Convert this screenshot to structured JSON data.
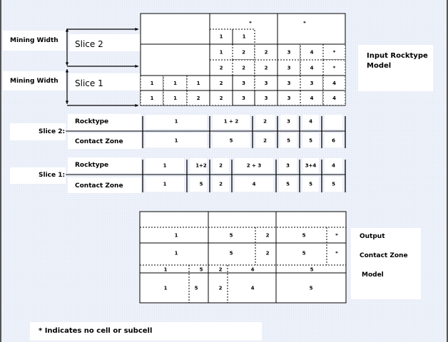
{
  "labels": {
    "mining_width": "Mining Width",
    "slice2": "Slice 2",
    "slice1": "Slice 1",
    "input_model": [
      "Input Rocktype",
      "Model"
    ],
    "slice2_colon": "Slice 2:",
    "slice1_colon": "Slice 1:",
    "rocktype": "Rocktype",
    "contact_zone": "Contact Zone",
    "output_model": [
      "Output",
      "Contact Zone",
      "Model"
    ],
    "note": "* Indicates no cell or subcell"
  },
  "input_grid": {
    "top_stars": [
      "*",
      "*"
    ],
    "row_a": [
      "1",
      "1"
    ],
    "row_b": [
      "1",
      "2",
      "2",
      "3",
      "4",
      "*"
    ],
    "row_c": [
      "2",
      "2",
      "2",
      "3",
      "4",
      "*"
    ],
    "row_d": [
      "1",
      "1",
      "1",
      "2",
      "3",
      "3",
      "3",
      "3",
      "4"
    ],
    "row_e": [
      "1",
      "1",
      "2",
      "2",
      "3",
      "3",
      "3",
      "4",
      "4"
    ]
  },
  "slice2_table": {
    "rocktype": [
      "1",
      "1 + 2",
      "2",
      "3",
      "4",
      ""
    ],
    "contact_zone": [
      "1",
      "5",
      "2",
      "5",
      "5",
      "6"
    ]
  },
  "slice1_table": {
    "rocktype": [
      "1",
      "1+2",
      "2",
      "2 + 3",
      "3",
      "3+4",
      "4"
    ],
    "contact_zone": [
      "1",
      "5",
      "2",
      "4",
      "5",
      "5",
      "5"
    ]
  },
  "output_grid": {
    "row_b": [
      "1",
      "5",
      "2",
      "5",
      "*"
    ],
    "row_c": [
      "1",
      "5",
      "2",
      "5",
      "*"
    ],
    "row_d": [
      "1",
      "5",
      "2",
      "4",
      "5"
    ],
    "row_e": [
      "1",
      "5",
      "2",
      "4",
      "5"
    ]
  }
}
